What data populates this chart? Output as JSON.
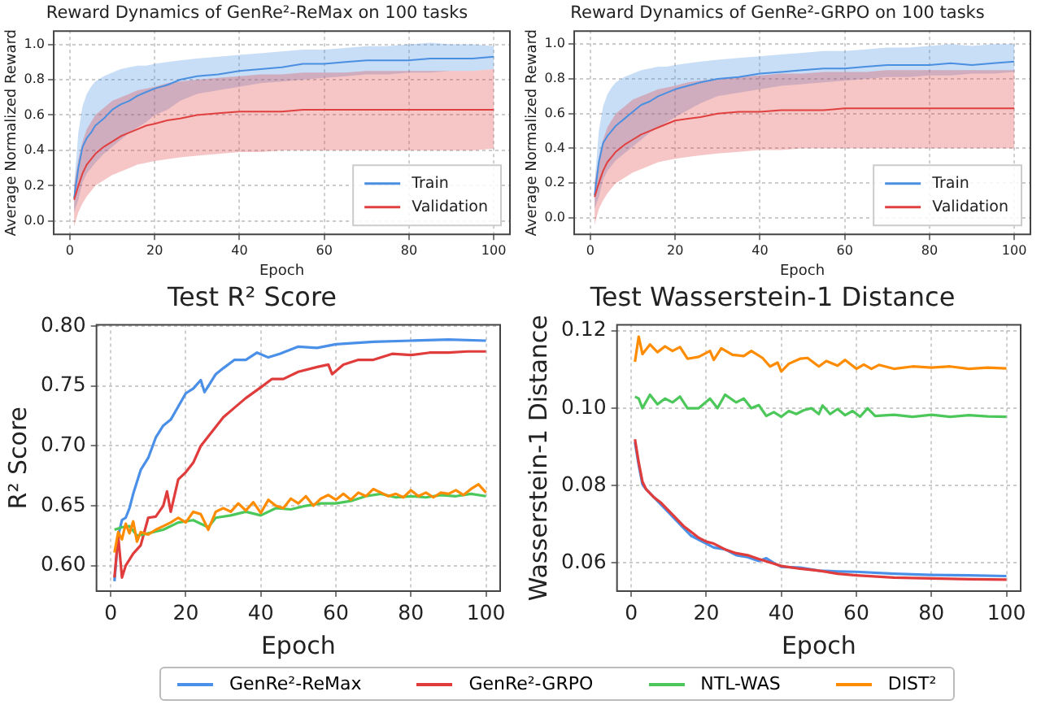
{
  "chart_data": [
    {
      "type": "line",
      "title": "Reward Dynamics of GenRe²-ReMax on 100 tasks",
      "xlabel": "Epoch",
      "ylabel": "Average Normalized Reward",
      "xlim": [
        -4,
        104
      ],
      "xticks": [
        0,
        20,
        40,
        60,
        80,
        100
      ],
      "ylim": [
        -0.08,
        1.08
      ],
      "yticks": [
        {
          "value": 0,
          "label": "0.0"
        },
        0.2,
        0.4,
        0.6,
        0.8,
        {
          "value": 1,
          "label": "1.0"
        }
      ],
      "grid": true,
      "legend": "bottom right",
      "marker": "none",
      "x": [
        1,
        2,
        3,
        4,
        5,
        6,
        8,
        10,
        12,
        14,
        16,
        18,
        20,
        23,
        26,
        30,
        35,
        40,
        45,
        50,
        55,
        60,
        65,
        70,
        75,
        80,
        85,
        90,
        95,
        100
      ],
      "series": [
        {
          "name": "Train",
          "color": "#4a8fe0",
          "values": [
            0.13,
            0.3,
            0.42,
            0.47,
            0.5,
            0.54,
            0.58,
            0.63,
            0.66,
            0.68,
            0.71,
            0.73,
            0.75,
            0.77,
            0.8,
            0.82,
            0.83,
            0.85,
            0.86,
            0.87,
            0.89,
            0.89,
            0.9,
            0.91,
            0.91,
            0.91,
            0.92,
            0.92,
            0.92,
            0.93
          ],
          "lower": [
            0.05,
            0.12,
            0.22,
            0.27,
            0.3,
            0.33,
            0.38,
            0.42,
            0.46,
            0.5,
            0.53,
            0.56,
            0.6,
            0.63,
            0.68,
            0.72,
            0.74,
            0.76,
            0.78,
            0.79,
            0.8,
            0.81,
            0.82,
            0.83,
            0.83,
            0.84,
            0.84,
            0.85,
            0.85,
            0.86
          ],
          "upper": [
            0.2,
            0.5,
            0.65,
            0.72,
            0.76,
            0.79,
            0.82,
            0.84,
            0.86,
            0.87,
            0.88,
            0.88,
            0.89,
            0.9,
            0.91,
            0.92,
            0.93,
            0.94,
            0.95,
            0.96,
            0.97,
            0.97,
            0.98,
            0.99,
            0.99,
            1.0,
            1.01,
            1.0,
            1.0,
            0.99
          ]
        },
        {
          "name": "Validation",
          "color": "#e04040",
          "values": [
            0.12,
            0.2,
            0.27,
            0.32,
            0.35,
            0.38,
            0.42,
            0.45,
            0.48,
            0.5,
            0.52,
            0.54,
            0.55,
            0.57,
            0.58,
            0.6,
            0.61,
            0.62,
            0.62,
            0.62,
            0.63,
            0.63,
            0.63,
            0.63,
            0.63,
            0.63,
            0.63,
            0.63,
            0.63,
            0.63
          ],
          "lower": [
            -0.03,
            0.05,
            0.1,
            0.14,
            0.17,
            0.2,
            0.23,
            0.26,
            0.28,
            0.3,
            0.32,
            0.33,
            0.34,
            0.35,
            0.36,
            0.37,
            0.38,
            0.39,
            0.39,
            0.4,
            0.4,
            0.4,
            0.4,
            0.4,
            0.4,
            0.4,
            0.4,
            0.4,
            0.4,
            0.41
          ],
          "upper": [
            0.2,
            0.35,
            0.45,
            0.52,
            0.56,
            0.6,
            0.64,
            0.68,
            0.7,
            0.72,
            0.74,
            0.75,
            0.76,
            0.78,
            0.79,
            0.8,
            0.81,
            0.82,
            0.83,
            0.83,
            0.84,
            0.84,
            0.84,
            0.85,
            0.85,
            0.85,
            0.85,
            0.85,
            0.85,
            0.86
          ]
        }
      ]
    },
    {
      "type": "line",
      "title": "Reward Dynamics of GenRe²-GRPO on 100 tasks",
      "xlabel": "Epoch",
      "ylabel": "Average Normalized Reward",
      "xlim": [
        -4,
        104
      ],
      "xticks": [
        0,
        20,
        40,
        60,
        80,
        100
      ],
      "ylim": [
        -0.1,
        1.08
      ],
      "yticks": [
        {
          "value": 0,
          "label": "0.0"
        },
        0.2,
        0.4,
        0.6,
        0.8,
        {
          "value": 1,
          "label": "1.0"
        }
      ],
      "grid": true,
      "legend": "bottom right",
      "marker": "none",
      "x": [
        1,
        2,
        3,
        4,
        5,
        6,
        8,
        10,
        12,
        14,
        16,
        18,
        20,
        23,
        26,
        30,
        35,
        40,
        45,
        50,
        55,
        60,
        65,
        70,
        75,
        80,
        85,
        90,
        95,
        100
      ],
      "series": [
        {
          "name": "Train",
          "color": "#4a8fe0",
          "values": [
            0.13,
            0.32,
            0.43,
            0.47,
            0.5,
            0.53,
            0.57,
            0.61,
            0.65,
            0.67,
            0.7,
            0.72,
            0.74,
            0.76,
            0.78,
            0.8,
            0.81,
            0.83,
            0.84,
            0.85,
            0.86,
            0.86,
            0.87,
            0.88,
            0.88,
            0.88,
            0.89,
            0.88,
            0.89,
            0.9
          ],
          "lower": [
            0.05,
            0.12,
            0.22,
            0.27,
            0.3,
            0.33,
            0.37,
            0.41,
            0.45,
            0.49,
            0.52,
            0.55,
            0.58,
            0.62,
            0.66,
            0.7,
            0.72,
            0.74,
            0.76,
            0.77,
            0.78,
            0.79,
            0.8,
            0.81,
            0.81,
            0.82,
            0.82,
            0.83,
            0.83,
            0.84
          ],
          "upper": [
            0.2,
            0.5,
            0.64,
            0.71,
            0.75,
            0.78,
            0.81,
            0.83,
            0.85,
            0.86,
            0.87,
            0.87,
            0.88,
            0.89,
            0.9,
            0.91,
            0.92,
            0.93,
            0.94,
            0.95,
            0.96,
            0.96,
            0.97,
            0.98,
            0.98,
            0.99,
            1.0,
            0.99,
            1.0,
            1.0
          ]
        },
        {
          "name": "Validation",
          "color": "#e04040",
          "values": [
            0.12,
            0.2,
            0.27,
            0.32,
            0.35,
            0.38,
            0.42,
            0.45,
            0.48,
            0.5,
            0.52,
            0.54,
            0.56,
            0.57,
            0.58,
            0.6,
            0.61,
            0.61,
            0.62,
            0.62,
            0.62,
            0.63,
            0.63,
            0.63,
            0.63,
            0.63,
            0.63,
            0.63,
            0.63,
            0.63
          ],
          "lower": [
            -0.04,
            0.05,
            0.1,
            0.14,
            0.17,
            0.2,
            0.23,
            0.26,
            0.28,
            0.3,
            0.32,
            0.33,
            0.34,
            0.35,
            0.36,
            0.37,
            0.38,
            0.39,
            0.39,
            0.4,
            0.4,
            0.4,
            0.4,
            0.4,
            0.4,
            0.4,
            0.4,
            0.4,
            0.4,
            0.4
          ],
          "upper": [
            0.2,
            0.35,
            0.45,
            0.52,
            0.56,
            0.6,
            0.64,
            0.68,
            0.7,
            0.72,
            0.74,
            0.75,
            0.76,
            0.78,
            0.79,
            0.8,
            0.81,
            0.82,
            0.83,
            0.83,
            0.84,
            0.84,
            0.84,
            0.85,
            0.85,
            0.85,
            0.85,
            0.85,
            0.85,
            0.85
          ]
        }
      ]
    },
    {
      "type": "line",
      "title": "Test R² Score",
      "xlabel": "Epoch",
      "ylabel": "R² Score",
      "xlim": [
        -4,
        104
      ],
      "xticks": [
        0,
        20,
        40,
        60,
        80,
        100
      ],
      "ylim": [
        0.578,
        0.802
      ],
      "yticks": [
        {
          "value": 0.6,
          "label": "0.60"
        },
        0.65,
        {
          "value": 0.7,
          "label": "0.70"
        },
        0.75,
        {
          "value": 0.8,
          "label": "0.80"
        }
      ],
      "grid": true,
      "legend": "bottom",
      "marker": "none",
      "series": [
        {
          "name": "GenRe²-ReMax",
          "color": "#4a8fe8",
          "x": [
            1,
            2,
            3,
            4,
            5,
            6,
            8,
            10,
            12,
            14,
            16,
            18,
            20,
            22,
            24,
            25,
            28,
            30,
            33,
            36,
            39,
            42,
            45,
            50,
            55,
            60,
            65,
            70,
            80,
            90,
            100
          ],
          "values": [
            0.587,
            0.625,
            0.638,
            0.64,
            0.648,
            0.66,
            0.68,
            0.69,
            0.707,
            0.717,
            0.722,
            0.733,
            0.744,
            0.748,
            0.755,
            0.745,
            0.76,
            0.765,
            0.772,
            0.772,
            0.778,
            0.774,
            0.777,
            0.783,
            0.782,
            0.785,
            0.786,
            0.787,
            0.788,
            0.789,
            0.788
          ]
        },
        {
          "name": "GenRe²-GRPO",
          "color": "#e03c3c",
          "x": [
            1,
            2,
            3,
            4,
            6,
            8,
            10,
            12,
            14,
            15,
            16,
            18,
            20,
            22,
            24,
            26,
            28,
            30,
            33,
            36,
            40,
            43,
            46,
            50,
            55,
            58,
            59,
            62,
            66,
            70,
            75,
            80,
            85,
            90,
            95,
            100
          ],
          "values": [
            0.59,
            0.625,
            0.59,
            0.6,
            0.61,
            0.617,
            0.64,
            0.641,
            0.65,
            0.662,
            0.645,
            0.672,
            0.678,
            0.686,
            0.7,
            0.708,
            0.716,
            0.724,
            0.732,
            0.74,
            0.749,
            0.756,
            0.756,
            0.762,
            0.766,
            0.768,
            0.76,
            0.768,
            0.772,
            0.772,
            0.777,
            0.776,
            0.778,
            0.778,
            0.779,
            0.779
          ]
        },
        {
          "name": "NTL-WAS",
          "color": "#4cc85a",
          "x": [
            1,
            3,
            5,
            7,
            10,
            14,
            18,
            22,
            26,
            28,
            32,
            36,
            40,
            44,
            48,
            52,
            56,
            60,
            64,
            68,
            72,
            76,
            80,
            84,
            88,
            92,
            96,
            100
          ],
          "values": [
            0.63,
            0.632,
            0.633,
            0.625,
            0.627,
            0.63,
            0.636,
            0.638,
            0.632,
            0.64,
            0.642,
            0.645,
            0.642,
            0.648,
            0.647,
            0.65,
            0.652,
            0.652,
            0.654,
            0.658,
            0.66,
            0.657,
            0.658,
            0.657,
            0.659,
            0.658,
            0.66,
            0.658
          ]
        },
        {
          "name": "DIST²",
          "color": "#ff8c00",
          "x": [
            1,
            2,
            3,
            4,
            5,
            6,
            7,
            8,
            10,
            12,
            14,
            16,
            18,
            20,
            22,
            24,
            26,
            28,
            30,
            32,
            34,
            36,
            38,
            40,
            42,
            44,
            46,
            48,
            50,
            52,
            54,
            56,
            58,
            60,
            62,
            64,
            66,
            68,
            70,
            72,
            74,
            76,
            78,
            80,
            82,
            84,
            86,
            88,
            90,
            92,
            94,
            96,
            98,
            100
          ],
          "values": [
            0.611,
            0.628,
            0.622,
            0.635,
            0.627,
            0.637,
            0.62,
            0.628,
            0.626,
            0.63,
            0.633,
            0.636,
            0.64,
            0.636,
            0.645,
            0.643,
            0.63,
            0.645,
            0.648,
            0.645,
            0.652,
            0.646,
            0.653,
            0.644,
            0.655,
            0.65,
            0.648,
            0.656,
            0.652,
            0.658,
            0.65,
            0.656,
            0.659,
            0.655,
            0.66,
            0.655,
            0.661,
            0.658,
            0.664,
            0.661,
            0.658,
            0.66,
            0.657,
            0.663,
            0.658,
            0.661,
            0.657,
            0.661,
            0.66,
            0.663,
            0.659,
            0.664,
            0.668,
            0.661
          ]
        }
      ]
    },
    {
      "type": "line",
      "title": "Test Wasserstein-1 Distance",
      "xlabel": "Epoch",
      "ylabel": "Wasserstein-1 Distance",
      "xlim": [
        -4,
        104
      ],
      "xticks": [
        0,
        20,
        40,
        60,
        80,
        100
      ],
      "ylim": [
        0.0525,
        0.1218
      ],
      "yticks": [
        0.06,
        0.08,
        {
          "value": 0.1,
          "label": "0.10"
        },
        0.12
      ],
      "grid": true,
      "marker": "none",
      "series": [
        {
          "color": "#4a8fe8",
          "x": [
            1,
            2,
            3,
            4,
            6,
            8,
            10,
            12,
            14,
            16,
            18,
            20,
            22,
            25,
            28,
            31,
            34,
            36,
            38,
            40,
            45,
            50,
            55,
            60,
            70,
            80,
            90,
            100
          ],
          "values": [
            0.0912,
            0.0853,
            0.0803,
            0.079,
            0.077,
            0.075,
            0.073,
            0.071,
            0.069,
            0.067,
            0.066,
            0.065,
            0.064,
            0.0635,
            0.062,
            0.0615,
            0.0605,
            0.0612,
            0.06,
            0.059,
            0.0588,
            0.058,
            0.0578,
            0.0577,
            0.0572,
            0.0569,
            0.0568,
            0.0566
          ]
        },
        {
          "color": "#e03c3c",
          "x": [
            1,
            2,
            3,
            4,
            6,
            8,
            10,
            12,
            14,
            16,
            18,
            20,
            22,
            25,
            28,
            31,
            34,
            38,
            40,
            45,
            50,
            55,
            60,
            70,
            80,
            90,
            100
          ],
          "values": [
            0.092,
            0.086,
            0.081,
            0.079,
            0.077,
            0.0755,
            0.0735,
            0.0715,
            0.0695,
            0.068,
            0.0665,
            0.0655,
            0.065,
            0.0635,
            0.0625,
            0.062,
            0.061,
            0.0598,
            0.0592,
            0.0585,
            0.058,
            0.0572,
            0.0568,
            0.0562,
            0.056,
            0.0558,
            0.0557
          ]
        },
        {
          "color": "#4cc85a",
          "x": [
            1,
            2,
            3,
            5,
            7,
            9,
            11,
            13,
            15,
            18,
            21,
            23,
            25,
            28,
            30,
            32,
            34,
            36,
            38,
            40,
            42,
            44,
            46,
            48,
            50,
            51,
            53,
            55,
            57,
            59,
            61,
            63,
            65,
            70,
            75,
            80,
            85,
            90,
            95,
            100
          ],
          "values": [
            0.103,
            0.1025,
            0.1,
            0.1035,
            0.101,
            0.1025,
            0.1015,
            0.103,
            0.1,
            0.1,
            0.1025,
            0.1,
            0.1035,
            0.1015,
            0.1025,
            0.1,
            0.1008,
            0.098,
            0.099,
            0.0978,
            0.0993,
            0.0985,
            0.0995,
            0.1,
            0.0985,
            0.1007,
            0.0985,
            0.0998,
            0.0982,
            0.0993,
            0.0978,
            0.1,
            0.098,
            0.0983,
            0.0978,
            0.0983,
            0.0978,
            0.0982,
            0.0979,
            0.0978
          ]
        },
        {
          "color": "#ff8c00",
          "x": [
            1,
            2,
            3,
            5,
            7,
            9,
            11,
            13,
            15,
            18,
            21,
            22,
            24,
            27,
            30,
            32,
            35,
            37,
            39,
            40,
            42,
            45,
            47,
            50,
            52,
            55,
            57,
            60,
            62,
            64,
            66,
            70,
            75,
            80,
            85,
            90,
            95,
            100
          ],
          "values": [
            0.112,
            0.1185,
            0.114,
            0.1165,
            0.1145,
            0.116,
            0.1148,
            0.1158,
            0.1128,
            0.1133,
            0.1148,
            0.1125,
            0.1155,
            0.1138,
            0.1135,
            0.1148,
            0.113,
            0.1108,
            0.1118,
            0.1095,
            0.1115,
            0.1128,
            0.113,
            0.1108,
            0.1122,
            0.111,
            0.1125,
            0.1102,
            0.1113,
            0.1102,
            0.1112,
            0.1102,
            0.1108,
            0.1105,
            0.1108,
            0.1102,
            0.1105,
            0.1103
          ]
        }
      ]
    }
  ]
}
